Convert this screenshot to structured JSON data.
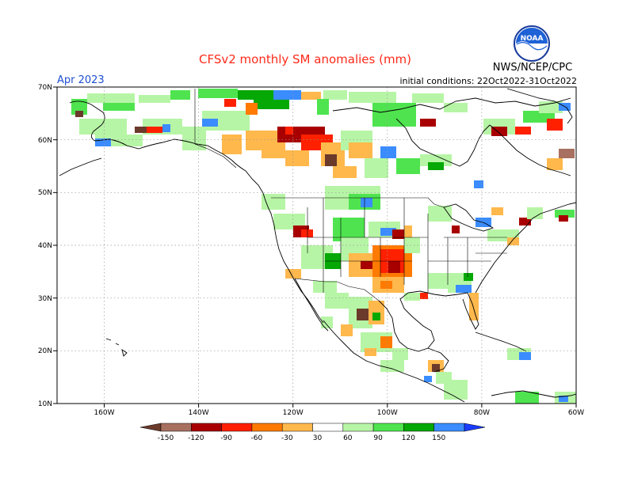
{
  "header": {
    "title": "CFSv2 monthly SM anomalies (mm)",
    "valid_month": "Apr 2023",
    "initial_conditions": "initial conditions: 22Oct2022-31Oct2022",
    "agency": "NWS/NCEP/CPC",
    "logo_text": "NOAA"
  },
  "map": {
    "lat_labels": [
      "70N",
      "60N",
      "50N",
      "40N",
      "30N",
      "20N",
      "10N"
    ],
    "lon_labels": [
      "160W",
      "140W",
      "120W",
      "100W",
      "80W",
      "60W"
    ],
    "lat_range": [
      10,
      70
    ],
    "lon_range": [
      -170,
      -60
    ],
    "grid": true
  },
  "legend": {
    "bins": [
      {
        "label": "-150",
        "color": "#6b3a2a"
      },
      {
        "label": "-120",
        "color": "#a87060"
      },
      {
        "label": "-90",
        "color": "#a80000"
      },
      {
        "label": "-60",
        "color": "#ff2000"
      },
      {
        "label": "-30",
        "color": "#ff7a00"
      },
      {
        "label": "30",
        "color": "#ffb84c"
      },
      {
        "label": "60",
        "color": "#ffffff"
      },
      {
        "label": "90",
        "color": "#b7f5a6"
      },
      {
        "label": "120",
        "color": "#4fe44f"
      },
      {
        "label": "150",
        "color": "#05a805"
      }
    ],
    "tail_colors": [
      "#3a8cff",
      "#1a3cff"
    ]
  }
}
